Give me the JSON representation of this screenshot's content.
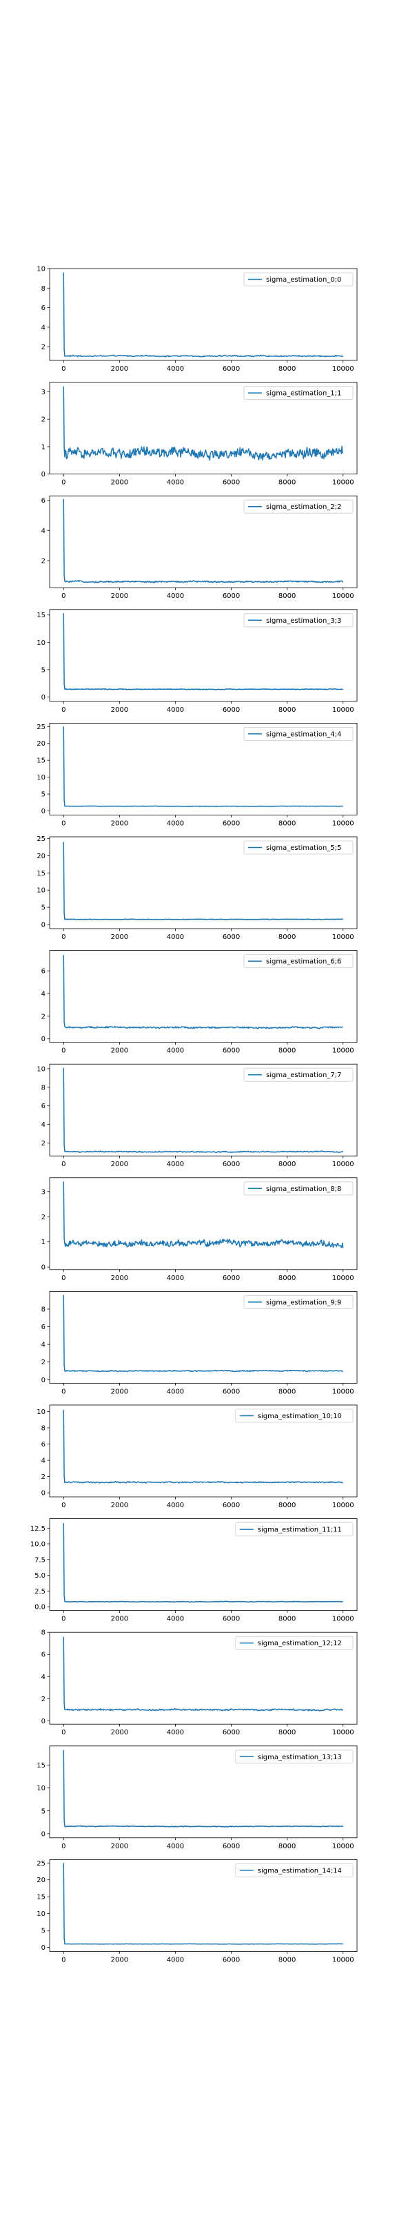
{
  "figure": {
    "background": "#ffffff",
    "line_color": "#1f77b4"
  },
  "chart_data": [
    {
      "type": "line",
      "title": "",
      "xlabel": "",
      "ylabel": "",
      "grid": false,
      "legend_position": "top-right",
      "series": [
        {
          "name": "sigma_estimation_0;0",
          "start": 9.6,
          "plateau": 1.05,
          "noise": 0.05
        }
      ],
      "x": {
        "min": 0,
        "max": 10000
      },
      "xlim": [
        -500,
        10500
      ],
      "ylim": [
        0.6,
        10.0
      ],
      "xticks": [
        0,
        2000,
        4000,
        6000,
        8000,
        10000
      ],
      "yticks": [
        2,
        4,
        6,
        8,
        10
      ]
    },
    {
      "type": "line",
      "title": "",
      "xlabel": "",
      "ylabel": "",
      "grid": false,
      "legend_position": "top-right",
      "series": [
        {
          "name": "sigma_estimation_1;1",
          "start": 3.2,
          "plateau": 0.75,
          "noise": 0.15
        }
      ],
      "x": {
        "min": 0,
        "max": 10000
      },
      "xlim": [
        -500,
        10500
      ],
      "ylim": [
        0,
        3.35
      ],
      "xticks": [
        0,
        2000,
        4000,
        6000,
        8000,
        10000
      ],
      "yticks": [
        0,
        1,
        2,
        3
      ]
    },
    {
      "type": "line",
      "title": "",
      "xlabel": "",
      "ylabel": "",
      "grid": false,
      "legend_position": "top-right",
      "series": [
        {
          "name": "sigma_estimation_2;2",
          "start": 6.1,
          "plateau": 0.6,
          "noise": 0.04
        }
      ],
      "x": {
        "min": 0,
        "max": 10000
      },
      "xlim": [
        -500,
        10500
      ],
      "ylim": [
        0.2,
        6.3
      ],
      "xticks": [
        0,
        2000,
        4000,
        6000,
        8000,
        10000
      ],
      "yticks": [
        2,
        4,
        6
      ]
    },
    {
      "type": "line",
      "title": "",
      "xlabel": "",
      "ylabel": "",
      "grid": false,
      "legend_position": "top-right",
      "series": [
        {
          "name": "sigma_estimation_3;3",
          "start": 15.3,
          "plateau": 1.4,
          "noise": 0.06
        }
      ],
      "x": {
        "min": 0,
        "max": 10000
      },
      "xlim": [
        -500,
        10500
      ],
      "ylim": [
        -0.8,
        16.0
      ],
      "xticks": [
        0,
        2000,
        4000,
        6000,
        8000,
        10000
      ],
      "yticks": [
        0,
        5,
        10,
        15
      ]
    },
    {
      "type": "line",
      "title": "",
      "xlabel": "",
      "ylabel": "",
      "grid": false,
      "legend_position": "top-right",
      "series": [
        {
          "name": "sigma_estimation_4;4",
          "start": 25.0,
          "plateau": 1.4,
          "noise": 0.06
        }
      ],
      "x": {
        "min": 0,
        "max": 10000
      },
      "xlim": [
        -500,
        10500
      ],
      "ylim": [
        -1.2,
        26.0
      ],
      "xticks": [
        0,
        2000,
        4000,
        6000,
        8000,
        10000
      ],
      "yticks": [
        0,
        5,
        10,
        15,
        20,
        25
      ]
    },
    {
      "type": "line",
      "title": "",
      "xlabel": "",
      "ylabel": "",
      "grid": false,
      "legend_position": "top-right",
      "series": [
        {
          "name": "sigma_estimation_5;5",
          "start": 24.0,
          "plateau": 1.5,
          "noise": 0.06
        }
      ],
      "x": {
        "min": 0,
        "max": 10000
      },
      "xlim": [
        -500,
        10500
      ],
      "ylim": [
        -1.2,
        25.5
      ],
      "xticks": [
        0,
        2000,
        4000,
        6000,
        8000,
        10000
      ],
      "yticks": [
        0,
        5,
        10,
        15,
        20,
        25
      ]
    },
    {
      "type": "line",
      "title": "",
      "xlabel": "",
      "ylabel": "",
      "grid": false,
      "legend_position": "top-right",
      "series": [
        {
          "name": "sigma_estimation_6;6",
          "start": 7.4,
          "plateau": 1.0,
          "noise": 0.06
        }
      ],
      "x": {
        "min": 0,
        "max": 10000
      },
      "xlim": [
        -500,
        10500
      ],
      "ylim": [
        -0.3,
        7.8
      ],
      "xticks": [
        0,
        2000,
        4000,
        6000,
        8000,
        10000
      ],
      "yticks": [
        0,
        2,
        4,
        6
      ]
    },
    {
      "type": "line",
      "title": "",
      "xlabel": "",
      "ylabel": "",
      "grid": false,
      "legend_position": "top-right",
      "series": [
        {
          "name": "sigma_estimation_7;7",
          "start": 10.1,
          "plateau": 1.05,
          "noise": 0.05
        }
      ],
      "x": {
        "min": 0,
        "max": 10000
      },
      "xlim": [
        -500,
        10500
      ],
      "ylim": [
        0.6,
        10.5
      ],
      "xticks": [
        0,
        2000,
        4000,
        6000,
        8000,
        10000
      ],
      "yticks": [
        2,
        4,
        6,
        8,
        10
      ]
    },
    {
      "type": "line",
      "title": "",
      "xlabel": "",
      "ylabel": "",
      "grid": false,
      "legend_position": "top-right",
      "series": [
        {
          "name": "sigma_estimation_8;8",
          "start": 3.4,
          "plateau": 0.95,
          "noise": 0.1
        }
      ],
      "x": {
        "min": 0,
        "max": 10000
      },
      "xlim": [
        -500,
        10500
      ],
      "ylim": [
        -0.1,
        3.55
      ],
      "xticks": [
        0,
        2000,
        4000,
        6000,
        8000,
        10000
      ],
      "yticks": [
        0,
        1,
        2,
        3
      ]
    },
    {
      "type": "line",
      "title": "",
      "xlabel": "",
      "ylabel": "",
      "grid": false,
      "legend_position": "top-right",
      "series": [
        {
          "name": "sigma_estimation_9;9",
          "start": 9.6,
          "plateau": 1.0,
          "noise": 0.05
        }
      ],
      "x": {
        "min": 0,
        "max": 10000
      },
      "xlim": [
        -500,
        10500
      ],
      "ylim": [
        -0.4,
        10.0
      ],
      "xticks": [
        0,
        2000,
        4000,
        6000,
        8000,
        10000
      ],
      "yticks": [
        0,
        2,
        4,
        6,
        8
      ]
    },
    {
      "type": "line",
      "title": "",
      "xlabel": "",
      "ylabel": "",
      "grid": false,
      "legend_position": "top-right",
      "series": [
        {
          "name": "sigma_estimation_10;10",
          "start": 10.2,
          "plateau": 1.3,
          "noise": 0.06
        }
      ],
      "x": {
        "min": 0,
        "max": 10000
      },
      "xlim": [
        -500,
        10500
      ],
      "ylim": [
        -0.5,
        10.8
      ],
      "xticks": [
        0,
        2000,
        4000,
        6000,
        8000,
        10000
      ],
      "yticks": [
        0,
        2,
        4,
        6,
        8,
        10
      ]
    },
    {
      "type": "line",
      "title": "",
      "xlabel": "",
      "ylabel": "",
      "grid": false,
      "legend_position": "top-right",
      "series": [
        {
          "name": "sigma_estimation_11;11",
          "start": 13.3,
          "plateau": 0.8,
          "noise": 0.04
        }
      ],
      "x": {
        "min": 0,
        "max": 10000
      },
      "xlim": [
        -500,
        10500
      ],
      "ylim": [
        -0.6,
        14.0
      ],
      "xticks": [
        0,
        2000,
        4000,
        6000,
        8000,
        10000
      ],
      "yticks": [
        0.0,
        2.5,
        5.0,
        7.5,
        10.0,
        12.5
      ],
      "ytick_labels": [
        "0.0",
        "2.5",
        "5.0",
        "7.5",
        "10.0",
        "12.5"
      ]
    },
    {
      "type": "line",
      "title": "",
      "xlabel": "",
      "ylabel": "",
      "grid": false,
      "legend_position": "top-right",
      "series": [
        {
          "name": "sigma_estimation_12;12",
          "start": 7.6,
          "plateau": 1.0,
          "noise": 0.06
        }
      ],
      "x": {
        "min": 0,
        "max": 10000
      },
      "xlim": [
        -500,
        10500
      ],
      "ylim": [
        -0.3,
        8.0
      ],
      "xticks": [
        0,
        2000,
        4000,
        6000,
        8000,
        10000
      ],
      "yticks": [
        0,
        2,
        4,
        6,
        8
      ]
    },
    {
      "type": "line",
      "title": "",
      "xlabel": "",
      "ylabel": "",
      "grid": false,
      "legend_position": "top-right",
      "series": [
        {
          "name": "sigma_estimation_13;13",
          "start": 18.3,
          "plateau": 1.6,
          "noise": 0.07
        }
      ],
      "x": {
        "min": 0,
        "max": 10000
      },
      "xlim": [
        -500,
        10500
      ],
      "ylim": [
        -0.9,
        19.2
      ],
      "xticks": [
        0,
        2000,
        4000,
        6000,
        8000,
        10000
      ],
      "yticks": [
        0,
        5,
        10,
        15
      ]
    },
    {
      "type": "line",
      "title": "",
      "xlabel": "",
      "ylabel": "",
      "grid": false,
      "legend_position": "top-right",
      "series": [
        {
          "name": "sigma_estimation_14;14",
          "start": 25.0,
          "plateau": 1.0,
          "noise": 0.05
        }
      ],
      "x": {
        "min": 0,
        "max": 10000
      },
      "xlim": [
        -500,
        10500
      ],
      "ylim": [
        -1.2,
        26.0
      ],
      "xticks": [
        0,
        2000,
        4000,
        6000,
        8000,
        10000
      ],
      "yticks": [
        0,
        5,
        10,
        15,
        20,
        25
      ]
    }
  ]
}
